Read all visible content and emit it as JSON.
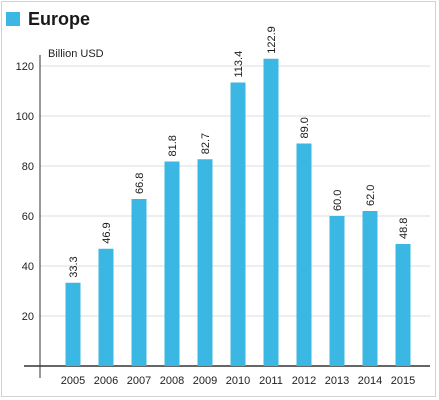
{
  "colors": {
    "bar": "#3ab7e2",
    "grid": "#d9dde0",
    "axis": "#333333"
  },
  "chart_data": {
    "type": "bar",
    "legend": "Europe",
    "legend_position": "top-left",
    "ylabel": "Billion USD",
    "xlabel": "",
    "title": "",
    "ylim": [
      0,
      125
    ],
    "yticks": [
      20,
      40,
      60,
      80,
      100,
      120
    ],
    "grid": true,
    "series": [
      {
        "name": "Europe",
        "values": [
          33.3,
          46.9,
          66.8,
          81.8,
          82.7,
          113.4,
          122.9,
          89.0,
          60.0,
          62.0,
          48.8
        ],
        "labels": [
          "33.3",
          "46.9",
          "66.8",
          "81.8",
          "82.7",
          "113.4",
          "122.9",
          "89.0",
          "60.0",
          "62.0",
          "48.8"
        ]
      }
    ],
    "categories": [
      "2005",
      "2006",
      "2007",
      "2008",
      "2009",
      "2010",
      "2011",
      "2012",
      "2013",
      "2014",
      "2015"
    ]
  }
}
